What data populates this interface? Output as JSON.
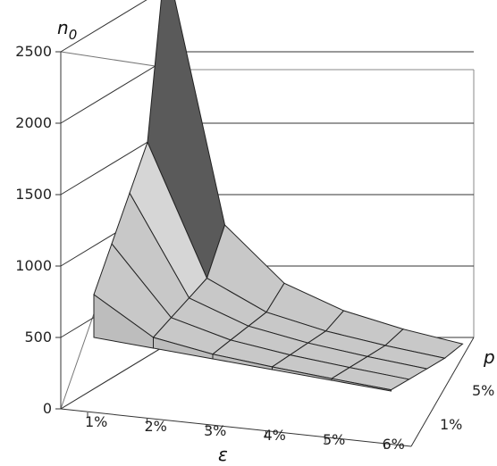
{
  "chart_data": {
    "type": "surface",
    "title": "",
    "zlabel": "n",
    "zlabel_sub": "0",
    "xlabel": "ε",
    "ylabel": "p",
    "x_categories": [
      "1%",
      "2%",
      "3%",
      "4%",
      "5%",
      "6%"
    ],
    "y_ticks": [
      "1%",
      "5%"
    ],
    "z_ticks": [
      "0",
      "500",
      "1000",
      "1500",
      "2000",
      "2500"
    ],
    "zlim": [
      0,
      2500
    ],
    "grid": true,
    "band_colors": {
      "0-500": "#c8c8c8",
      "500-1000": "#d6d6d6",
      "1000-1500": "#5a5a5a",
      "1500-2000": "#e2e2e2",
      "2000-2500": "#2a2a2a"
    },
    "surface": {
      "y_values": [
        "1%",
        "2%",
        "3%",
        "4%",
        "5%"
      ],
      "rows": [
        [
          300,
          75,
          33,
          19,
          12,
          8
        ],
        [
          590,
          148,
          66,
          37,
          24,
          16
        ],
        [
          880,
          220,
          98,
          55,
          35,
          24
        ],
        [
          1170,
          293,
          130,
          73,
          47,
          33
        ],
        [
          2400,
          600,
          267,
          150,
          96,
          67
        ]
      ]
    }
  }
}
